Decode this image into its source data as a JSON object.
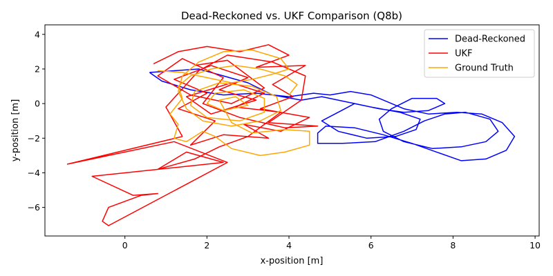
{
  "chart_data": {
    "type": "line",
    "title": "Dead-Reckoned vs. UKF Comparison (Q8b)",
    "xlabel": "x-position [m]",
    "ylabel": "y-position [m]",
    "xlim": [
      -1.95,
      10.1
    ],
    "ylim": [
      -7.65,
      4.55
    ],
    "xticks": [
      0,
      2,
      4,
      6,
      8,
      10
    ],
    "yticks": [
      -6,
      -4,
      -2,
      0,
      2,
      4
    ],
    "grid": false,
    "legend_position": "top-right",
    "series": [
      {
        "name": "Dead-Reckoned",
        "color": "#0000ff",
        "points": [
          [
            0.6,
            1.8
          ],
          [
            0.9,
            1.3
          ],
          [
            1.6,
            0.8
          ],
          [
            2.4,
            0.5
          ],
          [
            3.2,
            0.6
          ],
          [
            4.0,
            0.4
          ],
          [
            4.6,
            0.6
          ],
          [
            5.0,
            0.5
          ],
          [
            5.5,
            0.7
          ],
          [
            6.0,
            0.5
          ],
          [
            6.4,
            0.1
          ],
          [
            6.8,
            -0.3
          ],
          [
            7.4,
            -0.6
          ],
          [
            8.1,
            -0.5
          ],
          [
            8.7,
            -0.6
          ],
          [
            9.2,
            -1.1
          ],
          [
            9.5,
            -1.9
          ],
          [
            9.3,
            -2.7
          ],
          [
            8.8,
            -3.2
          ],
          [
            8.2,
            -3.3
          ],
          [
            7.6,
            -2.8
          ],
          [
            7.0,
            -2.3
          ],
          [
            6.3,
            -1.8
          ],
          [
            5.6,
            -1.4
          ],
          [
            4.9,
            -1.3
          ],
          [
            4.7,
            -1.7
          ],
          [
            4.7,
            -2.3
          ],
          [
            5.3,
            -2.3
          ],
          [
            6.1,
            -2.2
          ],
          [
            6.8,
            -1.6
          ],
          [
            7.3,
            -1.0
          ],
          [
            7.8,
            -0.6
          ],
          [
            8.3,
            -0.5
          ],
          [
            8.9,
            -0.9
          ],
          [
            9.1,
            -1.6
          ],
          [
            8.8,
            -2.2
          ],
          [
            8.2,
            -2.5
          ],
          [
            7.5,
            -2.6
          ],
          [
            6.8,
            -2.2
          ],
          [
            6.3,
            -1.6
          ],
          [
            6.2,
            -0.9
          ],
          [
            6.5,
            -0.3
          ],
          [
            7.0,
            0.3
          ],
          [
            7.6,
            0.3
          ],
          [
            7.8,
            0.0
          ],
          [
            7.4,
            -0.4
          ],
          [
            6.8,
            -0.5
          ],
          [
            6.2,
            -0.3
          ],
          [
            5.6,
            0.0
          ],
          [
            5.2,
            -0.5
          ],
          [
            4.8,
            -1.0
          ],
          [
            5.2,
            -1.6
          ],
          [
            5.9,
            -2.0
          ],
          [
            6.6,
            -1.9
          ],
          [
            7.1,
            -1.5
          ],
          [
            7.2,
            -0.9
          ],
          [
            6.7,
            -0.5
          ],
          [
            6.0,
            -0.2
          ],
          [
            5.4,
            0.1
          ],
          [
            4.8,
            0.4
          ],
          [
            4.3,
            0.2
          ],
          [
            3.6,
            0.5
          ],
          [
            3.0,
            1.2
          ],
          [
            2.4,
            1.6
          ],
          [
            1.8,
            2.0
          ],
          [
            1.2,
            1.9
          ],
          [
            0.6,
            1.8
          ]
        ]
      },
      {
        "name": "UKF",
        "color": "#ff0000",
        "points": [
          [
            0.7,
            2.3
          ],
          [
            1.3,
            3.0
          ],
          [
            2.0,
            3.3
          ],
          [
            2.8,
            3.0
          ],
          [
            3.5,
            3.4
          ],
          [
            4.0,
            2.8
          ],
          [
            3.2,
            2.1
          ],
          [
            4.4,
            2.2
          ],
          [
            3.6,
            1.1
          ],
          [
            4.1,
            0.4
          ],
          [
            3.3,
            -0.3
          ],
          [
            4.5,
            -0.8
          ],
          [
            3.8,
            -1.6
          ],
          [
            2.9,
            -1.2
          ],
          [
            3.5,
            -2.0
          ],
          [
            2.4,
            -1.8
          ],
          [
            1.6,
            -2.4
          ],
          [
            2.2,
            -1.0
          ],
          [
            1.3,
            -0.3
          ],
          [
            2.0,
            0.6
          ],
          [
            1.2,
            1.4
          ],
          [
            2.1,
            2.2
          ],
          [
            3.0,
            1.5
          ],
          [
            2.3,
            0.8
          ],
          [
            3.2,
            0.2
          ],
          [
            2.1,
            -0.6
          ],
          [
            1.5,
            0.4
          ],
          [
            2.6,
            1.2
          ],
          [
            3.4,
            0.6
          ],
          [
            2.7,
            -0.2
          ],
          [
            3.8,
            -0.5
          ],
          [
            3.0,
            -1.9
          ],
          [
            2.3,
            -2.5
          ],
          [
            1.7,
            -3.2
          ],
          [
            0.8,
            -3.8
          ],
          [
            1.5,
            -2.8
          ],
          [
            2.4,
            -3.4
          ],
          [
            -0.8,
            -4.2
          ],
          [
            0.2,
            -5.3
          ],
          [
            0.8,
            -5.2
          ],
          [
            0.4,
            -5.3
          ],
          [
            -0.4,
            -6.0
          ],
          [
            -0.55,
            -6.8
          ],
          [
            -0.4,
            -7.05
          ],
          [
            2.5,
            -3.4
          ],
          [
            1.2,
            -2.2
          ],
          [
            -1.4,
            -3.5
          ],
          [
            1.4,
            -1.9
          ],
          [
            1.0,
            -0.2
          ],
          [
            1.8,
            1.9
          ],
          [
            2.5,
            2.8
          ],
          [
            3.6,
            2.4
          ],
          [
            4.4,
            1.6
          ],
          [
            4.3,
            0.2
          ],
          [
            3.5,
            -1.1
          ],
          [
            4.7,
            -1.3
          ],
          [
            3.9,
            -1.4
          ],
          [
            2.8,
            -0.8
          ],
          [
            1.9,
            0.0
          ],
          [
            2.4,
            1.5
          ],
          [
            1.4,
            2.6
          ],
          [
            0.8,
            1.6
          ],
          [
            1.6,
            0.5
          ],
          [
            2.6,
            0.0
          ],
          [
            3.4,
            0.9
          ],
          [
            2.5,
            2.5
          ],
          [
            1.7,
            2.2
          ]
        ]
      },
      {
        "name": "Ground Truth",
        "color": "#ffa500",
        "points": [
          [
            0.8,
            1.9
          ],
          [
            1.4,
            1.8
          ],
          [
            2.0,
            1.5
          ],
          [
            2.6,
            1.2
          ],
          [
            3.1,
            1.4
          ],
          [
            3.6,
            1.7
          ],
          [
            4.0,
            2.0
          ],
          [
            3.8,
            2.6
          ],
          [
            3.1,
            3.1
          ],
          [
            2.4,
            3.0
          ],
          [
            1.8,
            2.4
          ],
          [
            1.4,
            1.6
          ],
          [
            1.3,
            0.7
          ],
          [
            1.5,
            -0.3
          ],
          [
            1.9,
            -1.0
          ],
          [
            2.6,
            -1.3
          ],
          [
            3.3,
            -1.0
          ],
          [
            3.8,
            -0.4
          ],
          [
            3.7,
            0.4
          ],
          [
            3.1,
            1.0
          ],
          [
            2.3,
            1.2
          ],
          [
            1.7,
            0.7
          ],
          [
            1.6,
            -0.1
          ],
          [
            2.0,
            -0.8
          ],
          [
            2.8,
            -1.0
          ],
          [
            3.4,
            -0.5
          ],
          [
            3.4,
            0.3
          ],
          [
            2.9,
            0.8
          ],
          [
            2.2,
            0.6
          ],
          [
            2.0,
            0.0
          ],
          [
            2.4,
            -0.4
          ],
          [
            3.0,
            -0.1
          ],
          [
            2.7,
            0.4
          ],
          [
            2.3,
            0.2
          ],
          [
            2.6,
            -1.1
          ],
          [
            3.1,
            -1.7
          ],
          [
            3.9,
            -1.5
          ],
          [
            4.5,
            -1.6
          ],
          [
            4.5,
            -2.4
          ],
          [
            3.9,
            -2.8
          ],
          [
            3.3,
            -3.0
          ],
          [
            2.6,
            -2.6
          ],
          [
            2.2,
            -1.9
          ],
          [
            1.9,
            -1.6
          ],
          [
            1.5,
            -2.2
          ],
          [
            1.2,
            -2.0
          ],
          [
            1.3,
            -1.2
          ],
          [
            1.1,
            -0.6
          ],
          [
            1.4,
            0.3
          ],
          [
            1.3,
            1.0
          ],
          [
            1.6,
            1.6
          ],
          [
            2.1,
            2.0
          ],
          [
            2.7,
            2.2
          ],
          [
            3.3,
            2.0
          ],
          [
            3.9,
            1.6
          ],
          [
            4.2,
            1.1
          ],
          [
            4.0,
            0.5
          ]
        ]
      }
    ]
  }
}
